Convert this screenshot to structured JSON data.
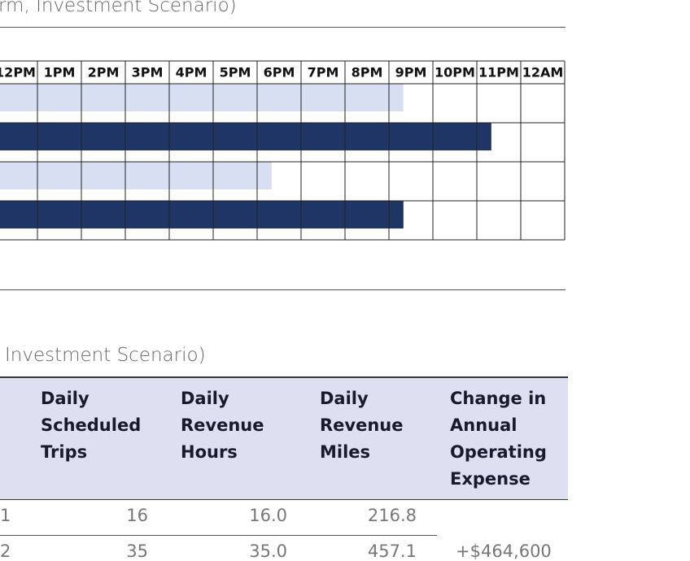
{
  "header": {
    "title": "rm, Investment Scenario)"
  },
  "gantt": {
    "columns": [
      "12PM",
      "1PM",
      "2PM",
      "3PM",
      "4PM",
      "5PM",
      "6PM",
      "7PM",
      "8PM",
      "9PM",
      "10PM",
      "11PM",
      "12AM"
    ],
    "first_hour": 12,
    "rows": [
      {
        "end": 21.33,
        "style": "light"
      },
      {
        "end": 23.33,
        "style": "dark"
      },
      {
        "end": 18.33,
        "style": "light"
      },
      {
        "end": 21.33,
        "style": "dark"
      }
    ]
  },
  "section2": {
    "title": "Investment Scenario)"
  },
  "table": {
    "headers": [
      "Daily Scheduled Trips",
      "Daily Revenue Hours",
      "Daily Revenue Miles",
      "Change in Annual Operating Expense"
    ],
    "rows": [
      [
        "1",
        "16",
        "16.0",
        "216.8"
      ],
      [
        "2",
        "35",
        "35.0",
        "457.1"
      ]
    ],
    "expense": "+$464,600"
  }
}
